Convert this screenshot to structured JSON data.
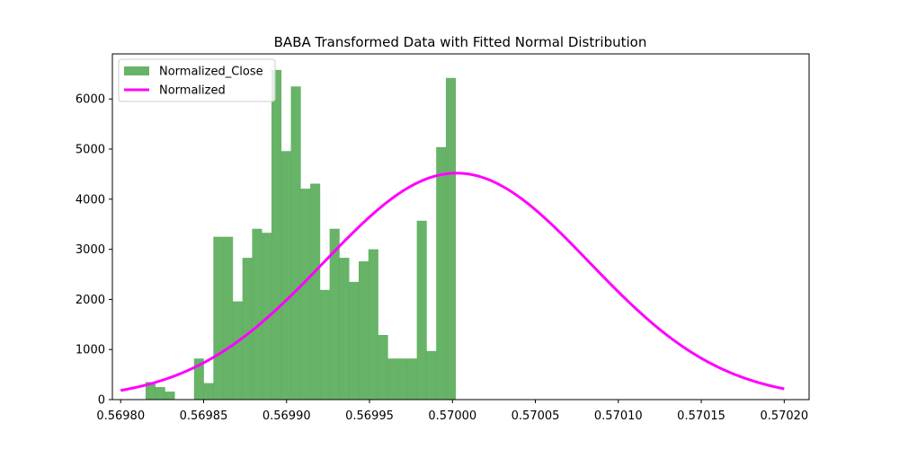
{
  "chart_data": {
    "type": "bar",
    "title": "BABA Transformed Data with Fitted Normal Distribution",
    "xlabel": "",
    "ylabel": "",
    "xlim": [
      0.569795,
      0.570215
    ],
    "ylim": [
      0,
      6900
    ],
    "xticks": [
      0.5698,
      0.56985,
      0.5699,
      0.56995,
      0.57,
      0.57005,
      0.5701,
      0.57015,
      0.5702
    ],
    "xtick_labels": [
      "0.56980",
      "0.56985",
      "0.56990",
      "0.56995",
      "0.57000",
      "0.57005",
      "0.57010",
      "0.57015",
      "0.57020"
    ],
    "yticks": [
      0,
      1000,
      2000,
      3000,
      4000,
      5000,
      6000
    ],
    "ytick_labels": [
      "0",
      "1000",
      "2000",
      "3000",
      "4000",
      "5000",
      "6000"
    ],
    "grid": false,
    "legend": {
      "location": "top-left",
      "entries": [
        {
          "label": "Normalized_Close",
          "kind": "patch",
          "color": "#4ca64c"
        },
        {
          "label": "Normalized",
          "kind": "line",
          "color": "#ff00ff"
        }
      ]
    },
    "histogram": {
      "name": "Normalized_Close",
      "color": "#4ca64c",
      "alpha": 0.85,
      "bin_start": 0.569815,
      "bin_width": 5.84e-06,
      "counts": [
        350,
        250,
        160,
        0,
        0,
        820,
        330,
        3250,
        3250,
        1960,
        2830,
        3410,
        3330,
        6580,
        4960,
        6250,
        4210,
        4310,
        2190,
        3410,
        2830,
        2350,
        2760,
        3000,
        1290,
        820,
        820,
        820,
        3570,
        970,
        5040,
        6420
      ]
    },
    "fit_line": {
      "name": "Normalized",
      "color": "#ff00ff",
      "width": 3,
      "mean": 0.5700025,
      "std": 8e-05,
      "peak": 4520,
      "x_range": [
        0.5698,
        0.5702
      ]
    }
  }
}
